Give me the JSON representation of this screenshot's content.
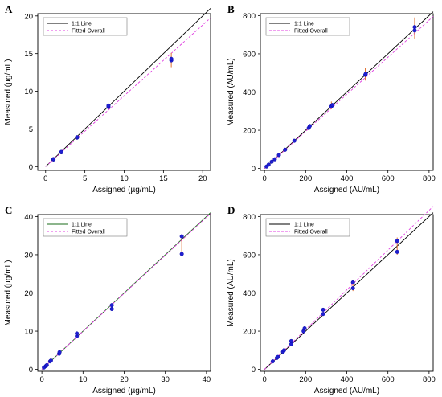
{
  "chart_data": [
    {
      "type": "scatter",
      "panel": "A",
      "xlabel": "Assigned (µg/mL)",
      "ylabel": "Measured (µg/mL)",
      "xlim": [
        -1,
        21
      ],
      "ylim": [
        -0.5,
        20.3
      ],
      "xticks": [
        "0",
        "5",
        "10",
        "15",
        "20"
      ],
      "yticks": [
        "0",
        "5",
        "10",
        "15",
        "20"
      ],
      "legend": [
        "1:1 Line",
        "Fitted Overall"
      ],
      "legend_position": "top-left",
      "identity_color": "#000000",
      "fit_color": "#e040e0",
      "fit_slope": 0.94,
      "points": [
        [
          1,
          0.95
        ],
        [
          1,
          1.0
        ],
        [
          2,
          1.9
        ],
        [
          2,
          1.95
        ],
        [
          4,
          3.85
        ],
        [
          4,
          3.9
        ],
        [
          8,
          7.9
        ],
        [
          8,
          8.1
        ],
        [
          16,
          14.1
        ],
        [
          16,
          14.3
        ]
      ],
      "error_bars": [
        [
          8,
          7.7,
          8.3
        ],
        [
          16,
          13.2,
          15.1
        ]
      ]
    },
    {
      "type": "scatter",
      "panel": "B",
      "xlabel": "Assigned (AU/mL)",
      "ylabel": "Measured (AU/mL)",
      "xlim": [
        -20,
        820
      ],
      "ylim": [
        -10,
        810
      ],
      "xticks": [
        "0",
        "200",
        "400",
        "600",
        "800"
      ],
      "yticks": [
        "0",
        "200",
        "400",
        "600",
        "800"
      ],
      "legend": [
        "1:1 Line",
        "Fitted Overall"
      ],
      "legend_position": "top-left",
      "identity_color": "#000000",
      "fit_color": "#e040e0",
      "fit_slope": 0.97,
      "points": [
        [
          10,
          10
        ],
        [
          20,
          20
        ],
        [
          35,
          35
        ],
        [
          50,
          48
        ],
        [
          70,
          70
        ],
        [
          100,
          98
        ],
        [
          145,
          145
        ],
        [
          215,
          212
        ],
        [
          220,
          222
        ],
        [
          325,
          325
        ],
        [
          330,
          332
        ],
        [
          490,
          490
        ],
        [
          492,
          495
        ],
        [
          730,
          740
        ],
        [
          730,
          722
        ]
      ],
      "error_bars": [
        [
          325,
          310,
          350
        ],
        [
          490,
          460,
          525
        ],
        [
          730,
          680,
          790
        ]
      ]
    },
    {
      "type": "scatter",
      "panel": "C",
      "xlabel": "Assigned (µg/mL)",
      "ylabel": "Measured (µg/mL)",
      "xlim": [
        -1,
        41
      ],
      "ylim": [
        -0.5,
        40.5
      ],
      "xticks": [
        "0",
        "10",
        "20",
        "30",
        "40"
      ],
      "yticks": [
        "0",
        "10",
        "20",
        "30",
        "40"
      ],
      "legend": [
        "1:1 Line",
        "Fitted Overall"
      ],
      "legend_position": "top-left",
      "identity_color": "#1a6b1a",
      "fit_color": "#e040e0",
      "fit_slope": 0.995,
      "points": [
        [
          0.5,
          0.5
        ],
        [
          1,
          0.9
        ],
        [
          1.2,
          1.1
        ],
        [
          2,
          2.1
        ],
        [
          2.2,
          2.3
        ],
        [
          4.2,
          4.1
        ],
        [
          4.3,
          4.5
        ],
        [
          8.5,
          8.7
        ],
        [
          8.5,
          9.4
        ],
        [
          17,
          15.8
        ],
        [
          17,
          16.8
        ],
        [
          34,
          30.2
        ],
        [
          34,
          34.8
        ]
      ],
      "error_bars": [
        [
          34,
          30.0,
          35.0
        ]
      ]
    },
    {
      "type": "scatter",
      "panel": "D",
      "xlabel": "Assigned (AU/mL)",
      "ylabel": "Measured (AU/mL)",
      "xlim": [
        -20,
        820
      ],
      "ylim": [
        -10,
        810
      ],
      "xticks": [
        "0",
        "200",
        "400",
        "600",
        "800"
      ],
      "yticks": [
        "0",
        "200",
        "400",
        "600",
        "800"
      ],
      "legend": [
        "1:1 Line",
        "Fitted Overall"
      ],
      "legend_position": "top-left",
      "identity_color": "#000000",
      "fit_color": "#e040e0",
      "fit_slope": 1.04,
      "points": [
        [
          40,
          42
        ],
        [
          60,
          60
        ],
        [
          65,
          65
        ],
        [
          90,
          92
        ],
        [
          95,
          100
        ],
        [
          130,
          132
        ],
        [
          130,
          148
        ],
        [
          190,
          200
        ],
        [
          195,
          215
        ],
        [
          285,
          290
        ],
        [
          285,
          312
        ],
        [
          430,
          425
        ],
        [
          430,
          455
        ],
        [
          645,
          615
        ],
        [
          645,
          672
        ]
      ],
      "error_bars": [
        [
          430,
          410,
          465
        ],
        [
          645,
          600,
          690
        ]
      ]
    }
  ]
}
